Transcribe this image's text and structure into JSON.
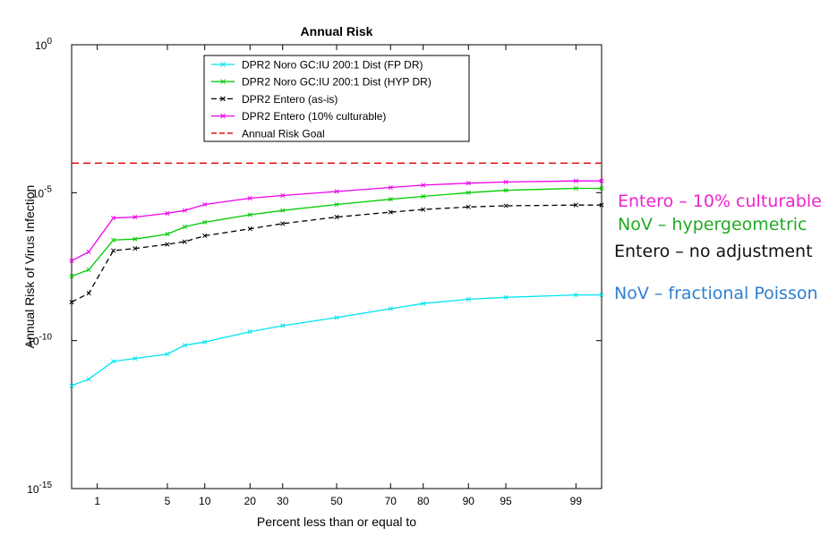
{
  "chart_data": {
    "type": "line",
    "title": "Annual Risk",
    "xlabel": "Percent less than or equal to",
    "ylabel": "Annual Risk of Virus Infection",
    "y_scale": "log",
    "x_scale": "normal-probability",
    "ylim": [
      1e-15,
      1
    ],
    "xlim": [
      0.5,
      99.5
    ],
    "x_ticks": [
      1,
      5,
      10,
      20,
      30,
      50,
      70,
      80,
      90,
      95,
      99
    ],
    "y_ticks": [
      {
        "value": 1,
        "label": "10^0"
      },
      {
        "value": 1e-05,
        "label": "10^-5"
      },
      {
        "value": 1e-10,
        "label": "10^-10"
      },
      {
        "value": 1e-15,
        "label": "10^-15"
      }
    ],
    "grid": false,
    "legend_position": "top-center",
    "x": [
      0.5,
      0.8,
      1.5,
      2.5,
      5,
      7,
      10,
      20,
      30,
      50,
      70,
      80,
      90,
      95,
      99,
      99.5
    ],
    "series": [
      {
        "name": "DPR2 Noro GC:IU 200:1 Dist (FP DR)",
        "color": "#00e5ee",
        "style": "solid",
        "marker": "x",
        "values": [
          3e-12,
          5e-12,
          2e-11,
          2.5e-11,
          3.5e-11,
          7e-11,
          9e-11,
          2e-10,
          3.2e-10,
          6e-10,
          1.2e-09,
          1.8e-09,
          2.5e-09,
          2.9e-09,
          3.5e-09,
          3.5e-09
        ]
      },
      {
        "name": "DPR2 Noro GC:IU 200:1 Dist (HYP DR)",
        "color": "#00cc00",
        "style": "solid",
        "marker": "x",
        "values": [
          1.5e-08,
          2.5e-08,
          2.5e-07,
          2.7e-07,
          4e-07,
          7e-07,
          1e-06,
          1.8e-06,
          2.5e-06,
          4e-06,
          6e-06,
          7.5e-06,
          1e-05,
          1.2e-05,
          1.4e-05,
          1.4e-05
        ]
      },
      {
        "name": "DPR2 Entero (as-is)",
        "color": "#000000",
        "style": "dashed",
        "marker": "x",
        "values": [
          2e-09,
          4e-09,
          1.1e-07,
          1.3e-07,
          1.8e-07,
          2.2e-07,
          3.5e-07,
          6e-07,
          9e-07,
          1.5e-06,
          2.2e-06,
          2.7e-06,
          3.3e-06,
          3.6e-06,
          3.8e-06,
          3.8e-06
        ]
      },
      {
        "name": "DPR2 Entero (10% culturable)",
        "color": "#ee00ee",
        "style": "solid",
        "marker": "x",
        "values": [
          5e-08,
          1e-07,
          1.4e-06,
          1.5e-06,
          2e-06,
          2.5e-06,
          4e-06,
          6.5e-06,
          8e-06,
          1.1e-05,
          1.5e-05,
          1.8e-05,
          2.1e-05,
          2.3e-05,
          2.5e-05,
          2.5e-05
        ]
      },
      {
        "name": "Annual Risk Goal",
        "color": "#dd0000",
        "style": "dashed",
        "marker": "none",
        "values": [
          0.0001,
          0.0001,
          0.0001,
          0.0001,
          0.0001,
          0.0001,
          0.0001,
          0.0001,
          0.0001,
          0.0001,
          0.0001,
          0.0001,
          0.0001,
          0.0001,
          0.0001,
          0.0001
        ]
      }
    ],
    "annotations": [
      {
        "text": "Entero – 10% culturable",
        "color": "#ee22cc"
      },
      {
        "text": "NoV – hypergeometric",
        "color": "#22aa22"
      },
      {
        "text": "Entero – no adjustment",
        "color": "#111111"
      },
      {
        "text": "NoV – fractional Poisson",
        "color": "#2f7fd0"
      }
    ]
  }
}
